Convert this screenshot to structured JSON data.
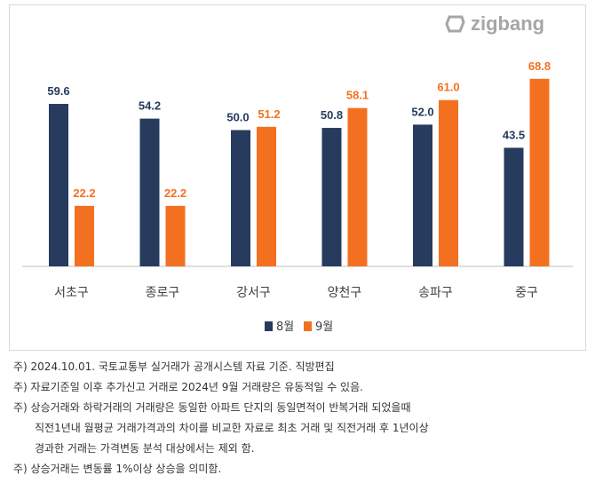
{
  "logo": "zigbang",
  "chart_data": {
    "type": "bar",
    "categories": [
      "서초구",
      "종로구",
      "강서구",
      "양천구",
      "송파구",
      "중구"
    ],
    "series": [
      {
        "name": "8월",
        "color": "#263b5e",
        "values": [
          59.6,
          54.2,
          50.0,
          50.8,
          52.0,
          43.5
        ]
      },
      {
        "name": "9월",
        "color": "#f47021",
        "values": [
          22.2,
          22.2,
          51.2,
          58.1,
          61.0,
          68.8
        ]
      }
    ],
    "ylim": [
      0,
      75
    ],
    "legend": "bottom",
    "grid": false
  },
  "notes": [
    "주) 2024.10.01. 국토교통부 실거래가 공개시스템 자료 기준. 직방편집",
    "주) 자료기준일 이후 추가신고 거래로 2024년 9월 거래량은 유동적일 수 있음.",
    "주) 상승거래와 하락거래의 거래량은 동일한 아파트 단지의 동일면적이 반복거래 되었을때",
    "직전1년내 월평균 거래가격과의 차이를 비교한 자료로 최초 거래 및 직전거래 후 1년이상",
    "경과한 거래는 가격변동 분석 대상에서는 제외 함.",
    "주) 상승거래는 변동률 1%이상 상승을 의미함."
  ]
}
